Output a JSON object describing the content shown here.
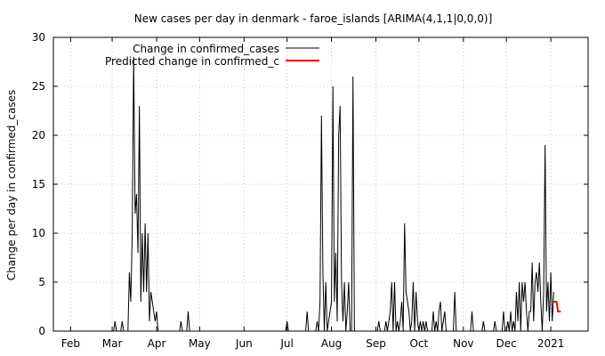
{
  "chart_data": {
    "type": "line",
    "title": "New cases per day in denmark - faroe_islands [ARIMA(4,1,1|0,0,0)]",
    "xlabel": "",
    "ylabel": "Change per day in confirmed_cases",
    "ylim": [
      0,
      30
    ],
    "xlim": [
      "2020-01-20",
      "2021-01-27"
    ],
    "yticks": [
      0,
      5,
      10,
      15,
      20,
      25,
      30
    ],
    "xticks": [
      {
        "date": "2020-02-01",
        "label": "Feb"
      },
      {
        "date": "2020-03-01",
        "label": "Mar"
      },
      {
        "date": "2020-04-01",
        "label": "Apr"
      },
      {
        "date": "2020-05-01",
        "label": "May"
      },
      {
        "date": "2020-06-01",
        "label": "Jun"
      },
      {
        "date": "2020-07-01",
        "label": "Jul"
      },
      {
        "date": "2020-08-01",
        "label": "Aug"
      },
      {
        "date": "2020-09-01",
        "label": "Sep"
      },
      {
        "date": "2020-10-01",
        "label": "Oct"
      },
      {
        "date": "2020-11-01",
        "label": "Nov"
      },
      {
        "date": "2020-12-01",
        "label": "Dec"
      },
      {
        "date": "2021-01-01",
        "label": "2021"
      }
    ],
    "grid": true,
    "legend_position": "top-left",
    "series": [
      {
        "name": "Change in confirmed_cases",
        "color": "#000000",
        "points": [
          [
            "2020-01-20",
            0
          ],
          [
            "2020-03-02",
            0
          ],
          [
            "2020-03-03",
            1
          ],
          [
            "2020-03-04",
            0
          ],
          [
            "2020-03-07",
            0
          ],
          [
            "2020-03-08",
            1
          ],
          [
            "2020-03-09",
            0
          ],
          [
            "2020-03-12",
            0
          ],
          [
            "2020-03-13",
            6
          ],
          [
            "2020-03-14",
            3
          ],
          [
            "2020-03-15",
            10
          ],
          [
            "2020-03-16",
            28
          ],
          [
            "2020-03-17",
            12
          ],
          [
            "2020-03-18",
            14
          ],
          [
            "2020-03-19",
            8
          ],
          [
            "2020-03-20",
            23
          ],
          [
            "2020-03-21",
            3
          ],
          [
            "2020-03-22",
            10
          ],
          [
            "2020-03-23",
            4
          ],
          [
            "2020-03-24",
            11
          ],
          [
            "2020-03-25",
            4
          ],
          [
            "2020-03-26",
            10
          ],
          [
            "2020-03-27",
            1
          ],
          [
            "2020-03-28",
            4
          ],
          [
            "2020-03-29",
            3
          ],
          [
            "2020-03-30",
            2
          ],
          [
            "2020-03-31",
            1
          ],
          [
            "2020-04-01",
            2
          ],
          [
            "2020-04-02",
            0
          ],
          [
            "2020-04-17",
            0
          ],
          [
            "2020-04-18",
            1
          ],
          [
            "2020-04-19",
            0
          ],
          [
            "2020-04-22",
            0
          ],
          [
            "2020-04-23",
            2
          ],
          [
            "2020-04-24",
            0
          ],
          [
            "2020-06-30",
            0
          ],
          [
            "2020-07-01",
            1
          ],
          [
            "2020-07-02",
            0
          ],
          [
            "2020-07-14",
            0
          ],
          [
            "2020-07-15",
            2
          ],
          [
            "2020-07-16",
            0
          ],
          [
            "2020-07-21",
            0
          ],
          [
            "2020-07-22",
            1
          ],
          [
            "2020-07-23",
            0
          ],
          [
            "2020-07-24",
            3
          ],
          [
            "2020-07-25",
            22
          ],
          [
            "2020-07-26",
            6
          ],
          [
            "2020-07-27",
            0
          ],
          [
            "2020-07-28",
            5
          ],
          [
            "2020-07-29",
            0
          ],
          [
            "2020-07-30",
            1
          ],
          [
            "2020-07-31",
            2
          ],
          [
            "2020-08-01",
            3
          ],
          [
            "2020-08-02",
            25
          ],
          [
            "2020-08-03",
            3
          ],
          [
            "2020-08-04",
            8
          ],
          [
            "2020-08-05",
            1
          ],
          [
            "2020-08-06",
            20
          ],
          [
            "2020-08-07",
            23
          ],
          [
            "2020-08-08",
            5
          ],
          [
            "2020-08-09",
            1
          ],
          [
            "2020-08-10",
            5
          ],
          [
            "2020-08-11",
            0
          ],
          [
            "2020-08-12",
            2
          ],
          [
            "2020-08-13",
            5
          ],
          [
            "2020-08-14",
            0
          ],
          [
            "2020-08-15",
            0
          ],
          [
            "2020-08-16",
            26
          ],
          [
            "2020-08-17",
            0
          ],
          [
            "2020-09-02",
            0
          ],
          [
            "2020-09-03",
            1
          ],
          [
            "2020-09-04",
            0
          ],
          [
            "2020-09-07",
            0
          ],
          [
            "2020-09-08",
            1
          ],
          [
            "2020-09-09",
            0
          ],
          [
            "2020-09-10",
            1
          ],
          [
            "2020-09-11",
            2
          ],
          [
            "2020-09-12",
            5
          ],
          [
            "2020-09-13",
            0
          ],
          [
            "2020-09-14",
            5
          ],
          [
            "2020-09-15",
            0
          ],
          [
            "2020-09-16",
            1
          ],
          [
            "2020-09-17",
            0
          ],
          [
            "2020-09-18",
            1
          ],
          [
            "2020-09-19",
            3
          ],
          [
            "2020-09-20",
            0
          ],
          [
            "2020-09-21",
            11
          ],
          [
            "2020-09-22",
            4
          ],
          [
            "2020-09-23",
            3
          ],
          [
            "2020-09-24",
            2
          ],
          [
            "2020-09-25",
            0
          ],
          [
            "2020-09-26",
            1
          ],
          [
            "2020-09-27",
            5
          ],
          [
            "2020-09-28",
            0
          ],
          [
            "2020-09-29",
            4
          ],
          [
            "2020-09-30",
            1
          ],
          [
            "2020-10-01",
            0
          ],
          [
            "2020-10-02",
            1
          ],
          [
            "2020-10-03",
            0
          ],
          [
            "2020-10-04",
            1
          ],
          [
            "2020-10-05",
            0
          ],
          [
            "2020-10-06",
            1
          ],
          [
            "2020-10-07",
            0
          ],
          [
            "2020-10-10",
            0
          ],
          [
            "2020-10-11",
            2
          ],
          [
            "2020-10-12",
            0
          ],
          [
            "2020-10-13",
            1
          ],
          [
            "2020-10-14",
            0
          ],
          [
            "2020-10-15",
            2
          ],
          [
            "2020-10-16",
            3
          ],
          [
            "2020-10-17",
            0
          ],
          [
            "2020-10-18",
            1
          ],
          [
            "2020-10-19",
            2
          ],
          [
            "2020-10-20",
            0
          ],
          [
            "2020-10-25",
            0
          ],
          [
            "2020-10-26",
            4
          ],
          [
            "2020-10-27",
            0
          ],
          [
            "2020-11-06",
            0
          ],
          [
            "2020-11-07",
            2
          ],
          [
            "2020-11-08",
            0
          ],
          [
            "2020-11-14",
            0
          ],
          [
            "2020-11-15",
            1
          ],
          [
            "2020-11-16",
            0
          ],
          [
            "2020-11-22",
            0
          ],
          [
            "2020-11-23",
            1
          ],
          [
            "2020-11-24",
            0
          ],
          [
            "2020-11-28",
            0
          ],
          [
            "2020-11-29",
            2
          ],
          [
            "2020-11-30",
            0
          ],
          [
            "2020-12-01",
            0
          ],
          [
            "2020-12-02",
            1
          ],
          [
            "2020-12-03",
            0
          ],
          [
            "2020-12-04",
            2
          ],
          [
            "2020-12-05",
            0
          ],
          [
            "2020-12-06",
            1
          ],
          [
            "2020-12-07",
            0
          ],
          [
            "2020-12-08",
            4
          ],
          [
            "2020-12-09",
            1
          ],
          [
            "2020-12-10",
            5
          ],
          [
            "2020-12-11",
            0
          ],
          [
            "2020-12-12",
            5
          ],
          [
            "2020-12-13",
            3
          ],
          [
            "2020-12-14",
            5
          ],
          [
            "2020-12-15",
            2
          ],
          [
            "2020-12-16",
            0
          ],
          [
            "2020-12-17",
            2
          ],
          [
            "2020-12-18",
            2
          ],
          [
            "2020-12-19",
            7
          ],
          [
            "2020-12-20",
            1
          ],
          [
            "2020-12-21",
            5
          ],
          [
            "2020-12-22",
            6
          ],
          [
            "2020-12-23",
            4
          ],
          [
            "2020-12-24",
            7
          ],
          [
            "2020-12-25",
            3
          ],
          [
            "2020-12-26",
            0
          ],
          [
            "2020-12-27",
            4
          ],
          [
            "2020-12-28",
            19
          ],
          [
            "2020-12-29",
            2
          ],
          [
            "2020-12-30",
            5
          ],
          [
            "2020-12-31",
            1
          ],
          [
            "2021-01-01",
            6
          ],
          [
            "2021-01-02",
            1
          ],
          [
            "2021-01-03",
            4
          ]
        ]
      },
      {
        "name": "Predicted change in confirmed_c",
        "color": "#ff0000",
        "points": [
          [
            "2021-01-03",
            3
          ],
          [
            "2021-01-05",
            3
          ],
          [
            "2021-01-06",
            2
          ],
          [
            "2021-01-08",
            2
          ]
        ]
      }
    ]
  }
}
